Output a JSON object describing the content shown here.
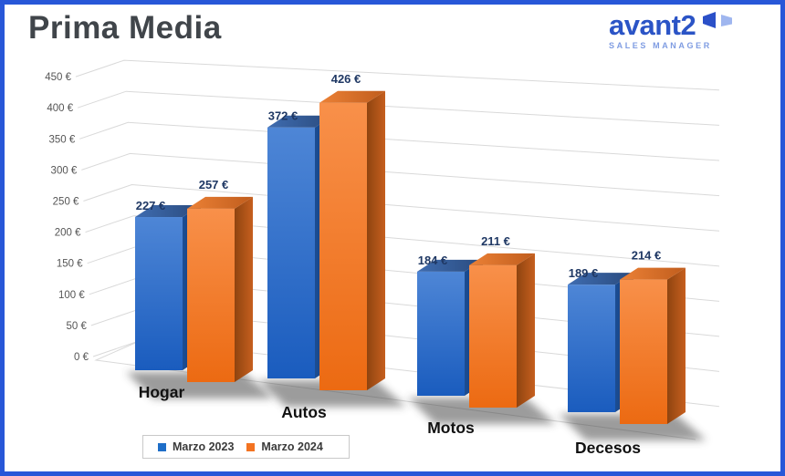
{
  "window": {
    "border_color": "#2857d8",
    "background": "#ffffff"
  },
  "header": {
    "title": "Prima Media",
    "logo": {
      "brand": "avant2",
      "subtitle": "SALES MANAGER",
      "brand_color": "#2b54c6",
      "subtitle_color": "#7f9ce2",
      "icon": "avant2-mark-icon",
      "icon_dark_color": "#2b50c8",
      "icon_light_color": "#9fb6ef"
    }
  },
  "chart_data": {
    "type": "bar",
    "projection": "3d",
    "title": "Prima Media",
    "categories": [
      "Hogar",
      "Autos",
      "Motos",
      "Decesos"
    ],
    "series": [
      {
        "name": "Marzo 2023",
        "color": "#1e6ec8",
        "values": [
          227,
          372,
          184,
          189
        ],
        "labels": [
          "227 €",
          "372 €",
          "184 €",
          "189 €"
        ]
      },
      {
        "name": "Marzo 2024",
        "color": "#f37321",
        "values": [
          257,
          426,
          211,
          214
        ],
        "labels": [
          "257 €",
          "426 €",
          "211 €",
          "214 €"
        ]
      }
    ],
    "value_suffix": " €",
    "y_axis": {
      "min": 0,
      "max": 450,
      "step": 50,
      "tick_labels": [
        "0 €",
        "50 €",
        "100 €",
        "150 €",
        "200 €",
        "250 €",
        "300 €",
        "350 €",
        "400 €",
        "450 €"
      ]
    },
    "gridlines": true,
    "legend_position": "bottom-left",
    "data_label_color": "#1f3864",
    "tick_label_color": "#555555",
    "category_label_color": "#111111",
    "gridline_color": "#d9d9d9"
  },
  "legend": {
    "items": [
      {
        "label": "Marzo 2023",
        "color": "#1e6ec8"
      },
      {
        "label": "Marzo 2024",
        "color": "#f37321"
      }
    ]
  }
}
